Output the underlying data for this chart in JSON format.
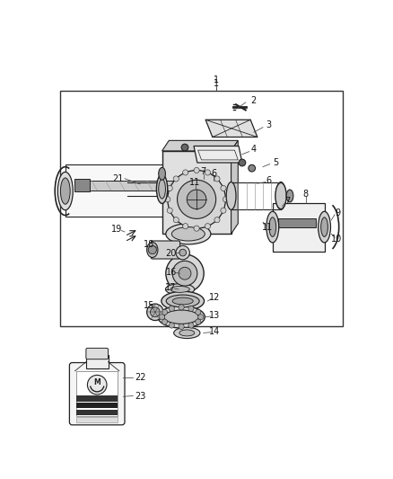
{
  "bg_color": "#ffffff",
  "lc": "#222222",
  "fc_light": "#f0f0f0",
  "fc_mid": "#d8d8d8",
  "fc_dark": "#aaaaaa",
  "fc_black": "#333333",
  "label_fs": 7,
  "label_color": "#111111"
}
